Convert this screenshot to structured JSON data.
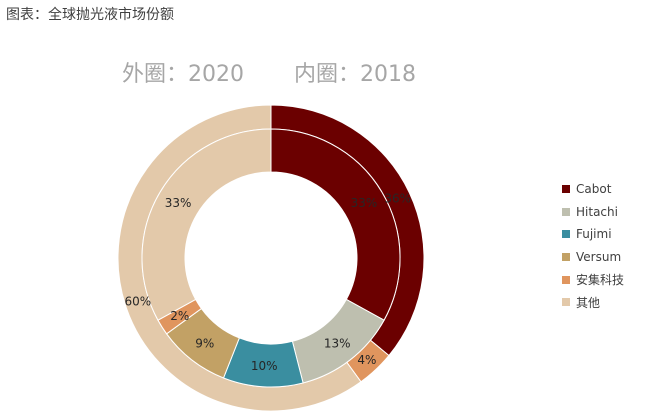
{
  "caption": "图表：全球抛光液市场份额",
  "chart_data": {
    "type": "pie",
    "title_outer": "外圈：2020",
    "title_inner": "内圈：2018",
    "categories": [
      "Cabot",
      "Hitachi",
      "Fujimi",
      "Versum",
      "安集科技",
      "其他"
    ],
    "colors": [
      "#6b0000",
      "#bebfaf",
      "#3a8ea0",
      "#c2a165",
      "#e0955e",
      "#e3c9aa"
    ],
    "series": [
      {
        "ring": "outer",
        "values": [
          36,
          0,
          0,
          0,
          4,
          60
        ],
        "labels": [
          "36%",
          "",
          "",
          "",
          "4%",
          "60%"
        ]
      },
      {
        "ring": "inner",
        "values": [
          33,
          13,
          10,
          9,
          2,
          33
        ],
        "labels": [
          "33%",
          "13%",
          "10%",
          "9%",
          "2%",
          "33%"
        ]
      }
    ],
    "legend_position": "right"
  }
}
